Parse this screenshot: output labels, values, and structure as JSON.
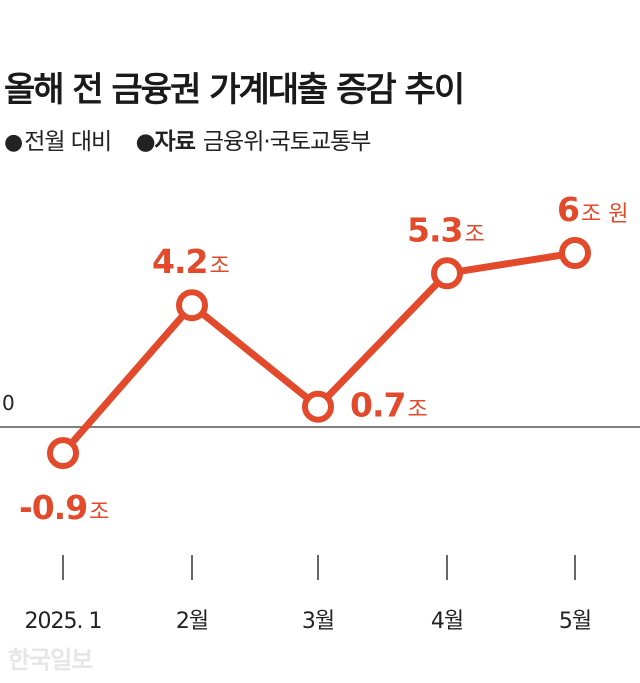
{
  "title": "올해 전 금융권 가계대출 증감 추이",
  "subtitle": {
    "bullet": "●",
    "note": "전월 대비",
    "source_label": "자료",
    "source_value": "금융위·국토교통부"
  },
  "logo": "한국일보",
  "colors": {
    "line": "#e24a2b",
    "axis": "#333333",
    "text": "#222222"
  },
  "chart_data": {
    "type": "line",
    "title": "올해 전 금융권 가계대출 증감 추이",
    "x": [
      "2025. 1",
      "2월",
      "3월",
      "4월",
      "5월"
    ],
    "series": [
      {
        "values": [
          -0.9,
          4.2,
          0.7,
          5.3,
          6.0
        ],
        "labels": [
          {
            "num": "-0.9",
            "unit": "조"
          },
          {
            "num": "4.2",
            "unit": "조"
          },
          {
            "num": "0.7",
            "unit": "조"
          },
          {
            "num": "5.3",
            "unit": "조"
          },
          {
            "num": "6",
            "unit": "조 원"
          }
        ]
      }
    ],
    "zero_label": "0",
    "grid": false,
    "legend": "none"
  }
}
